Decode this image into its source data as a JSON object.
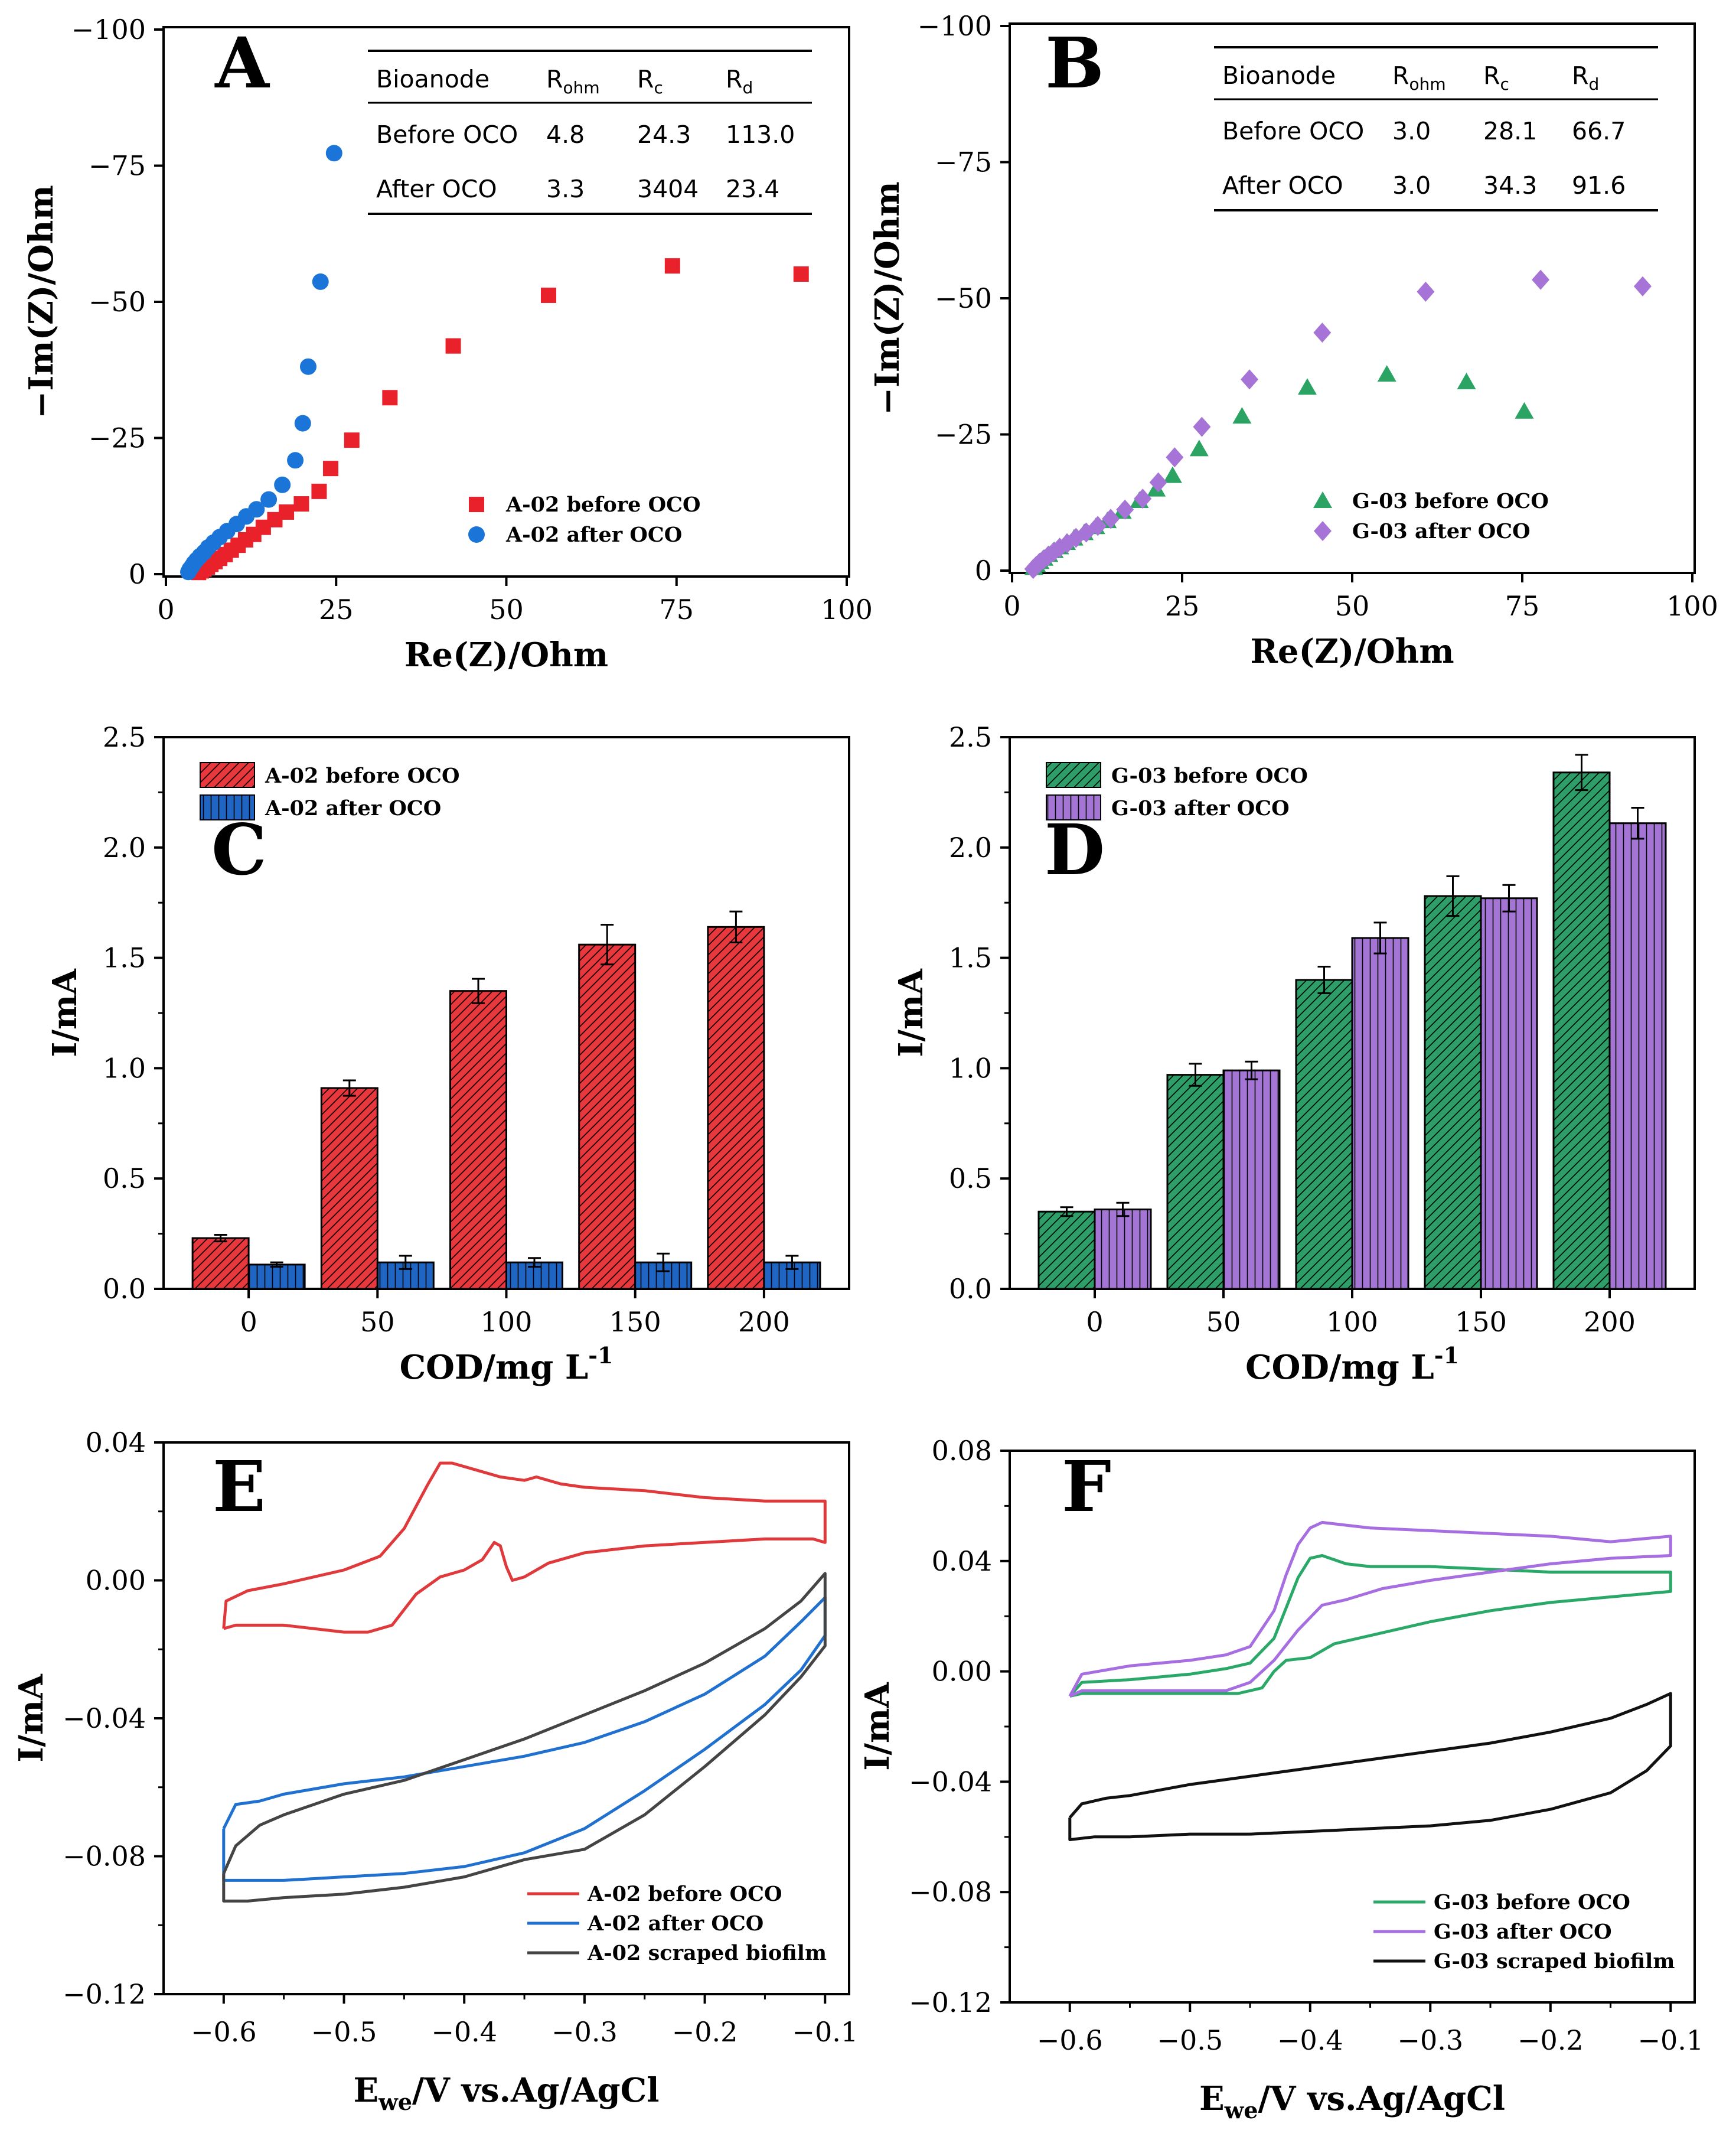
{
  "chart_data": [
    {
      "panel": "A",
      "type": "scatter",
      "xlabel": "Re(Z)/Ohm",
      "ylabel": "−Im(Z)/Ohm",
      "xlim": [
        0,
        100
      ],
      "ylim": [
        0,
        -100
      ],
      "xticks": [
        "0",
        "25",
        "50",
        "75",
        "100"
      ],
      "yticks": [
        "0",
        "−25",
        "−50",
        "−75",
        "−100"
      ],
      "table": {
        "headers": [
          "Bioanode",
          "R",
          "R",
          "R"
        ],
        "subscripts": [
          "",
          "ohm",
          "c",
          "d"
        ],
        "rows": [
          [
            "Before OCO",
            "4.8",
            "24.3",
            "113.0"
          ],
          [
            "After OCO",
            "3.3",
            "3404",
            "23.4"
          ]
        ]
      },
      "series": [
        {
          "name": "A-02 before OCO",
          "color": "#e8212b",
          "marker": "square",
          "x": [
            4.8,
            5.2,
            5.6,
            6.1,
            6.6,
            7.2,
            7.9,
            8.7,
            9.6,
            10.6,
            11.7,
            12.9,
            14.3,
            16,
            17.7,
            19.9,
            22.5,
            24.2,
            27.3,
            32.9,
            42.2,
            56.2,
            74.4,
            93.3
          ],
          "y": [
            -0.3,
            -0.6,
            -0.9,
            -1.3,
            -1.8,
            -2.3,
            -2.9,
            -3.6,
            -4.4,
            -5.3,
            -6.3,
            -7.3,
            -8.6,
            -10,
            -11.4,
            -12.9,
            -15.2,
            -19.4,
            -24.6,
            -32.4,
            -41.9,
            -51.2,
            -56.6,
            -55.1
          ]
        },
        {
          "name": "A-02 after OCO",
          "color": "#1b75d8",
          "marker": "circle",
          "x": [
            3.3,
            3.5,
            3.8,
            4.1,
            4.5,
            5,
            5.6,
            6.2,
            7,
            7.9,
            9,
            10.4,
            11.8,
            13.3,
            15.1,
            17.1,
            19,
            20.1,
            20.9,
            22.7,
            24.7
          ],
          "y": [
            -0.4,
            -0.9,
            -1.4,
            -2,
            -2.6,
            -3.3,
            -4,
            -4.9,
            -5.8,
            -6.8,
            -7.9,
            -9.2,
            -10.6,
            -11.9,
            -13.7,
            -16.4,
            -20.9,
            -27.7,
            -38.1,
            -53.7,
            -77.3
          ]
        }
      ]
    },
    {
      "panel": "B",
      "type": "scatter",
      "xlabel": "Re(Z)/Ohm",
      "ylabel": "−Im(Z)/Ohm",
      "xlim": [
        0,
        100
      ],
      "ylim": [
        0,
        -100
      ],
      "xticks": [
        "0",
        "25",
        "50",
        "75",
        "100"
      ],
      "yticks": [
        "0",
        "−25",
        "−50",
        "−75",
        "−100"
      ],
      "table": {
        "headers": [
          "Bioanode",
          "R",
          "R",
          "R"
        ],
        "subscripts": [
          "",
          "ohm",
          "c",
          "d"
        ],
        "rows": [
          [
            "Before OCO",
            "3.0",
            "28.1",
            "66.7"
          ],
          [
            "After OCO",
            "3.0",
            "34.3",
            "91.6"
          ]
        ]
      },
      "series": [
        {
          "name": "G-03 before OCO",
          "color": "#2aa363",
          "marker": "triangle",
          "x": [
            3.2,
            3.6,
            4.1,
            4.7,
            5.4,
            6.2,
            7,
            8,
            9.1,
            10.6,
            12.3,
            14,
            16.2,
            18.7,
            21.2,
            23.6,
            27.5,
            33.8,
            43.4,
            55.1,
            66.8,
            75.3
          ],
          "y": [
            -0.5,
            -1,
            -1.6,
            -2.2,
            -2.9,
            -3.6,
            -4.3,
            -5.1,
            -5.9,
            -6.9,
            -8,
            -9.1,
            -10.8,
            -12.8,
            -14.9,
            -17.4,
            -22.3,
            -28.3,
            -33.6,
            -36,
            -34.6,
            -29.2
          ]
        },
        {
          "name": "G-03 after OCO",
          "color": "#a673d6",
          "marker": "diamond",
          "x": [
            3.1,
            3.5,
            4,
            4.6,
            5.3,
            6.1,
            7,
            8.1,
            9.4,
            10.9,
            12.6,
            14.5,
            16.6,
            19.2,
            21.5,
            23.9,
            27.9,
            34.9,
            45.6,
            60.8,
            77.7,
            92.7
          ],
          "y": [
            -0.3,
            -0.8,
            -1.4,
            -2,
            -2.7,
            -3.4,
            -4.2,
            -5,
            -6,
            -7,
            -8.2,
            -9.5,
            -11.2,
            -13.2,
            -16.2,
            -20.8,
            -26.4,
            -35.1,
            -43.7,
            -51.2,
            -53.4,
            -52.2
          ]
        }
      ]
    },
    {
      "panel": "C",
      "type": "bar",
      "xlabel": "COD/mg L",
      "xlabel_sup": "-1",
      "ylabel": "I/mA",
      "ylim": [
        0,
        2.5
      ],
      "categories": [
        "0",
        "50",
        "100",
        "150",
        "200"
      ],
      "yticks": [
        "0.0",
        "0.5",
        "1.0",
        "1.5",
        "2.0",
        "2.5"
      ],
      "series": [
        {
          "name": "A-02 before OCO",
          "color": "#e8383d",
          "hatch": "diagonal",
          "values": [
            0.23,
            0.91,
            1.35,
            1.56,
            1.64
          ],
          "errors": [
            0.015,
            0.035,
            0.055,
            0.09,
            0.07
          ]
        },
        {
          "name": "A-02 after OCO",
          "color": "#1f66c4",
          "hatch": "vertical",
          "values": [
            0.11,
            0.12,
            0.12,
            0.12,
            0.12
          ],
          "errors": [
            0.01,
            0.03,
            0.02,
            0.04,
            0.03
          ]
        }
      ]
    },
    {
      "panel": "D",
      "type": "bar",
      "xlabel": "COD/mg L",
      "xlabel_sup": "-1",
      "ylabel": "I/mA",
      "ylim": [
        0,
        2.5
      ],
      "categories": [
        "0",
        "50",
        "100",
        "150",
        "200"
      ],
      "yticks": [
        "0.0",
        "0.5",
        "1.0",
        "1.5",
        "2.0",
        "2.5"
      ],
      "series": [
        {
          "name": "G-03 before OCO",
          "color": "#2e9e68",
          "hatch": "diagonal",
          "values": [
            0.35,
            0.97,
            1.4,
            1.78,
            2.34
          ],
          "errors": [
            0.02,
            0.05,
            0.06,
            0.09,
            0.08
          ]
        },
        {
          "name": "G-03 after OCO",
          "color": "#a575d6",
          "hatch": "vertical",
          "values": [
            0.36,
            0.99,
            1.59,
            1.77,
            2.11
          ],
          "errors": [
            0.03,
            0.04,
            0.07,
            0.06,
            0.07
          ]
        }
      ]
    },
    {
      "panel": "E",
      "type": "line",
      "xlabel": "E",
      "xlabel_sub": "we",
      "xlabel_rest": "/V vs.Ag/AgCl",
      "ylabel": "I/mA",
      "xlim": [
        -0.65,
        -0.08
      ],
      "ylim": [
        -0.12,
        0.04
      ],
      "xticks": [
        "−0.6",
        "−0.5",
        "−0.4",
        "−0.3",
        "−0.2",
        "−0.1"
      ],
      "yticks": [
        "−0.12",
        "−0.08",
        "−0.04",
        "0.00",
        "0.04"
      ],
      "series": [
        {
          "name": "A-02 before OCO",
          "color": "#e0393b",
          "x": [
            -0.6,
            -0.598,
            -0.58,
            -0.55,
            -0.5,
            -0.47,
            -0.45,
            -0.43,
            -0.42,
            -0.41,
            -0.39,
            -0.37,
            -0.35,
            -0.34,
            -0.32,
            -0.3,
            -0.25,
            -0.2,
            -0.15,
            -0.11,
            -0.1,
            -0.1,
            -0.11,
            -0.15,
            -0.2,
            -0.25,
            -0.3,
            -0.33,
            -0.35,
            -0.36,
            -0.365,
            -0.37,
            -0.375,
            -0.385,
            -0.4,
            -0.42,
            -0.44,
            -0.46,
            -0.48,
            -0.5,
            -0.55,
            -0.59,
            -0.6
          ],
          "y": [
            -0.014,
            -0.006,
            -0.003,
            -0.001,
            0.003,
            0.007,
            0.015,
            0.028,
            0.034,
            0.034,
            0.032,
            0.03,
            0.029,
            0.03,
            0.028,
            0.027,
            0.026,
            0.024,
            0.023,
            0.023,
            0.023,
            0.011,
            0.012,
            0.012,
            0.011,
            0.01,
            0.008,
            0.005,
            0.001,
            0.0,
            0.004,
            0.01,
            0.011,
            0.006,
            0.003,
            0.001,
            -0.004,
            -0.013,
            -0.015,
            -0.015,
            -0.013,
            -0.013,
            -0.014
          ]
        },
        {
          "name": "A-02 after OCO",
          "color": "#2070cf",
          "x": [
            -0.6,
            -0.59,
            -0.57,
            -0.55,
            -0.5,
            -0.45,
            -0.4,
            -0.35,
            -0.3,
            -0.25,
            -0.2,
            -0.15,
            -0.12,
            -0.1,
            -0.1,
            -0.12,
            -0.15,
            -0.2,
            -0.25,
            -0.3,
            -0.35,
            -0.4,
            -0.45,
            -0.5,
            -0.55,
            -0.58,
            -0.6,
            -0.6
          ],
          "y": [
            -0.072,
            -0.065,
            -0.064,
            -0.062,
            -0.059,
            -0.057,
            -0.054,
            -0.051,
            -0.047,
            -0.041,
            -0.033,
            -0.022,
            -0.012,
            -0.005,
            -0.016,
            -0.026,
            -0.036,
            -0.049,
            -0.061,
            -0.072,
            -0.079,
            -0.083,
            -0.085,
            -0.086,
            -0.087,
            -0.087,
            -0.087,
            -0.072
          ]
        },
        {
          "name": "A-02 scraped biofilm",
          "color": "#444444",
          "x": [
            -0.6,
            -0.59,
            -0.57,
            -0.55,
            -0.5,
            -0.45,
            -0.4,
            -0.35,
            -0.3,
            -0.25,
            -0.2,
            -0.15,
            -0.12,
            -0.1,
            -0.1,
            -0.12,
            -0.15,
            -0.2,
            -0.25,
            -0.3,
            -0.35,
            -0.4,
            -0.45,
            -0.5,
            -0.55,
            -0.58,
            -0.6,
            -0.6
          ],
          "y": [
            -0.085,
            -0.077,
            -0.071,
            -0.068,
            -0.062,
            -0.058,
            -0.052,
            -0.046,
            -0.039,
            -0.032,
            -0.024,
            -0.014,
            -0.006,
            0.002,
            -0.019,
            -0.028,
            -0.039,
            -0.054,
            -0.068,
            -0.078,
            -0.081,
            -0.086,
            -0.089,
            -0.091,
            -0.092,
            -0.093,
            -0.093,
            -0.085
          ]
        }
      ]
    },
    {
      "panel": "F",
      "type": "line",
      "xlabel": "E",
      "xlabel_sub": "we",
      "xlabel_rest": "/V vs.Ag/AgCl",
      "ylabel": "I/mA",
      "xlim": [
        -0.65,
        -0.08
      ],
      "ylim": [
        -0.12,
        0.08
      ],
      "xticks": [
        "−0.6",
        "−0.5",
        "−0.4",
        "−0.3",
        "−0.2",
        "−0.1"
      ],
      "yticks": [
        "−0.12",
        "−0.08",
        "−0.04",
        "0.00",
        "0.04",
        "0.08"
      ],
      "series": [
        {
          "name": "G-03 before OCO",
          "color": "#2aa868",
          "x": [
            -0.6,
            -0.59,
            -0.55,
            -0.5,
            -0.47,
            -0.45,
            -0.43,
            -0.42,
            -0.41,
            -0.4,
            -0.39,
            -0.37,
            -0.35,
            -0.3,
            -0.25,
            -0.2,
            -0.15,
            -0.1,
            -0.1,
            -0.15,
            -0.2,
            -0.25,
            -0.3,
            -0.35,
            -0.38,
            -0.4,
            -0.42,
            -0.43,
            -0.44,
            -0.46,
            -0.5,
            -0.55,
            -0.59,
            -0.6
          ],
          "y": [
            -0.009,
            -0.004,
            -0.003,
            -0.001,
            0.001,
            0.003,
            0.012,
            0.023,
            0.034,
            0.041,
            0.042,
            0.039,
            0.038,
            0.038,
            0.037,
            0.036,
            0.036,
            0.036,
            0.029,
            0.027,
            0.025,
            0.022,
            0.018,
            0.013,
            0.01,
            0.005,
            0.004,
            0.0,
            -0.006,
            -0.008,
            -0.008,
            -0.008,
            -0.008,
            -0.009
          ]
        },
        {
          "name": "G-03 after OCO",
          "color": "#a66ee0",
          "x": [
            -0.6,
            -0.59,
            -0.55,
            -0.5,
            -0.47,
            -0.45,
            -0.43,
            -0.42,
            -0.41,
            -0.4,
            -0.39,
            -0.37,
            -0.35,
            -0.3,
            -0.25,
            -0.2,
            -0.15,
            -0.1,
            -0.1,
            -0.15,
            -0.2,
            -0.25,
            -0.3,
            -0.34,
            -0.37,
            -0.39,
            -0.41,
            -0.43,
            -0.45,
            -0.47,
            -0.5,
            -0.55,
            -0.59,
            -0.6
          ],
          "y": [
            -0.009,
            -0.001,
            0.002,
            0.004,
            0.006,
            0.009,
            0.022,
            0.035,
            0.046,
            0.052,
            0.054,
            0.053,
            0.052,
            0.051,
            0.05,
            0.049,
            0.047,
            0.049,
            0.042,
            0.041,
            0.039,
            0.036,
            0.033,
            0.03,
            0.026,
            0.024,
            0.015,
            0.004,
            -0.004,
            -0.007,
            -0.007,
            -0.007,
            -0.007,
            -0.009
          ]
        },
        {
          "name": "G-03 scraped biofilm",
          "color": "#111111",
          "x": [
            -0.6,
            -0.59,
            -0.57,
            -0.55,
            -0.5,
            -0.45,
            -0.4,
            -0.35,
            -0.3,
            -0.25,
            -0.2,
            -0.15,
            -0.12,
            -0.1,
            -0.1,
            -0.12,
            -0.15,
            -0.2,
            -0.25,
            -0.3,
            -0.35,
            -0.4,
            -0.45,
            -0.5,
            -0.55,
            -0.58,
            -0.6,
            -0.6
          ],
          "y": [
            -0.053,
            -0.048,
            -0.046,
            -0.045,
            -0.041,
            -0.038,
            -0.035,
            -0.032,
            -0.029,
            -0.026,
            -0.022,
            -0.017,
            -0.012,
            -0.008,
            -0.027,
            -0.036,
            -0.044,
            -0.05,
            -0.054,
            -0.056,
            -0.057,
            -0.058,
            -0.059,
            -0.059,
            -0.06,
            -0.06,
            -0.061,
            -0.053
          ]
        }
      ]
    }
  ]
}
